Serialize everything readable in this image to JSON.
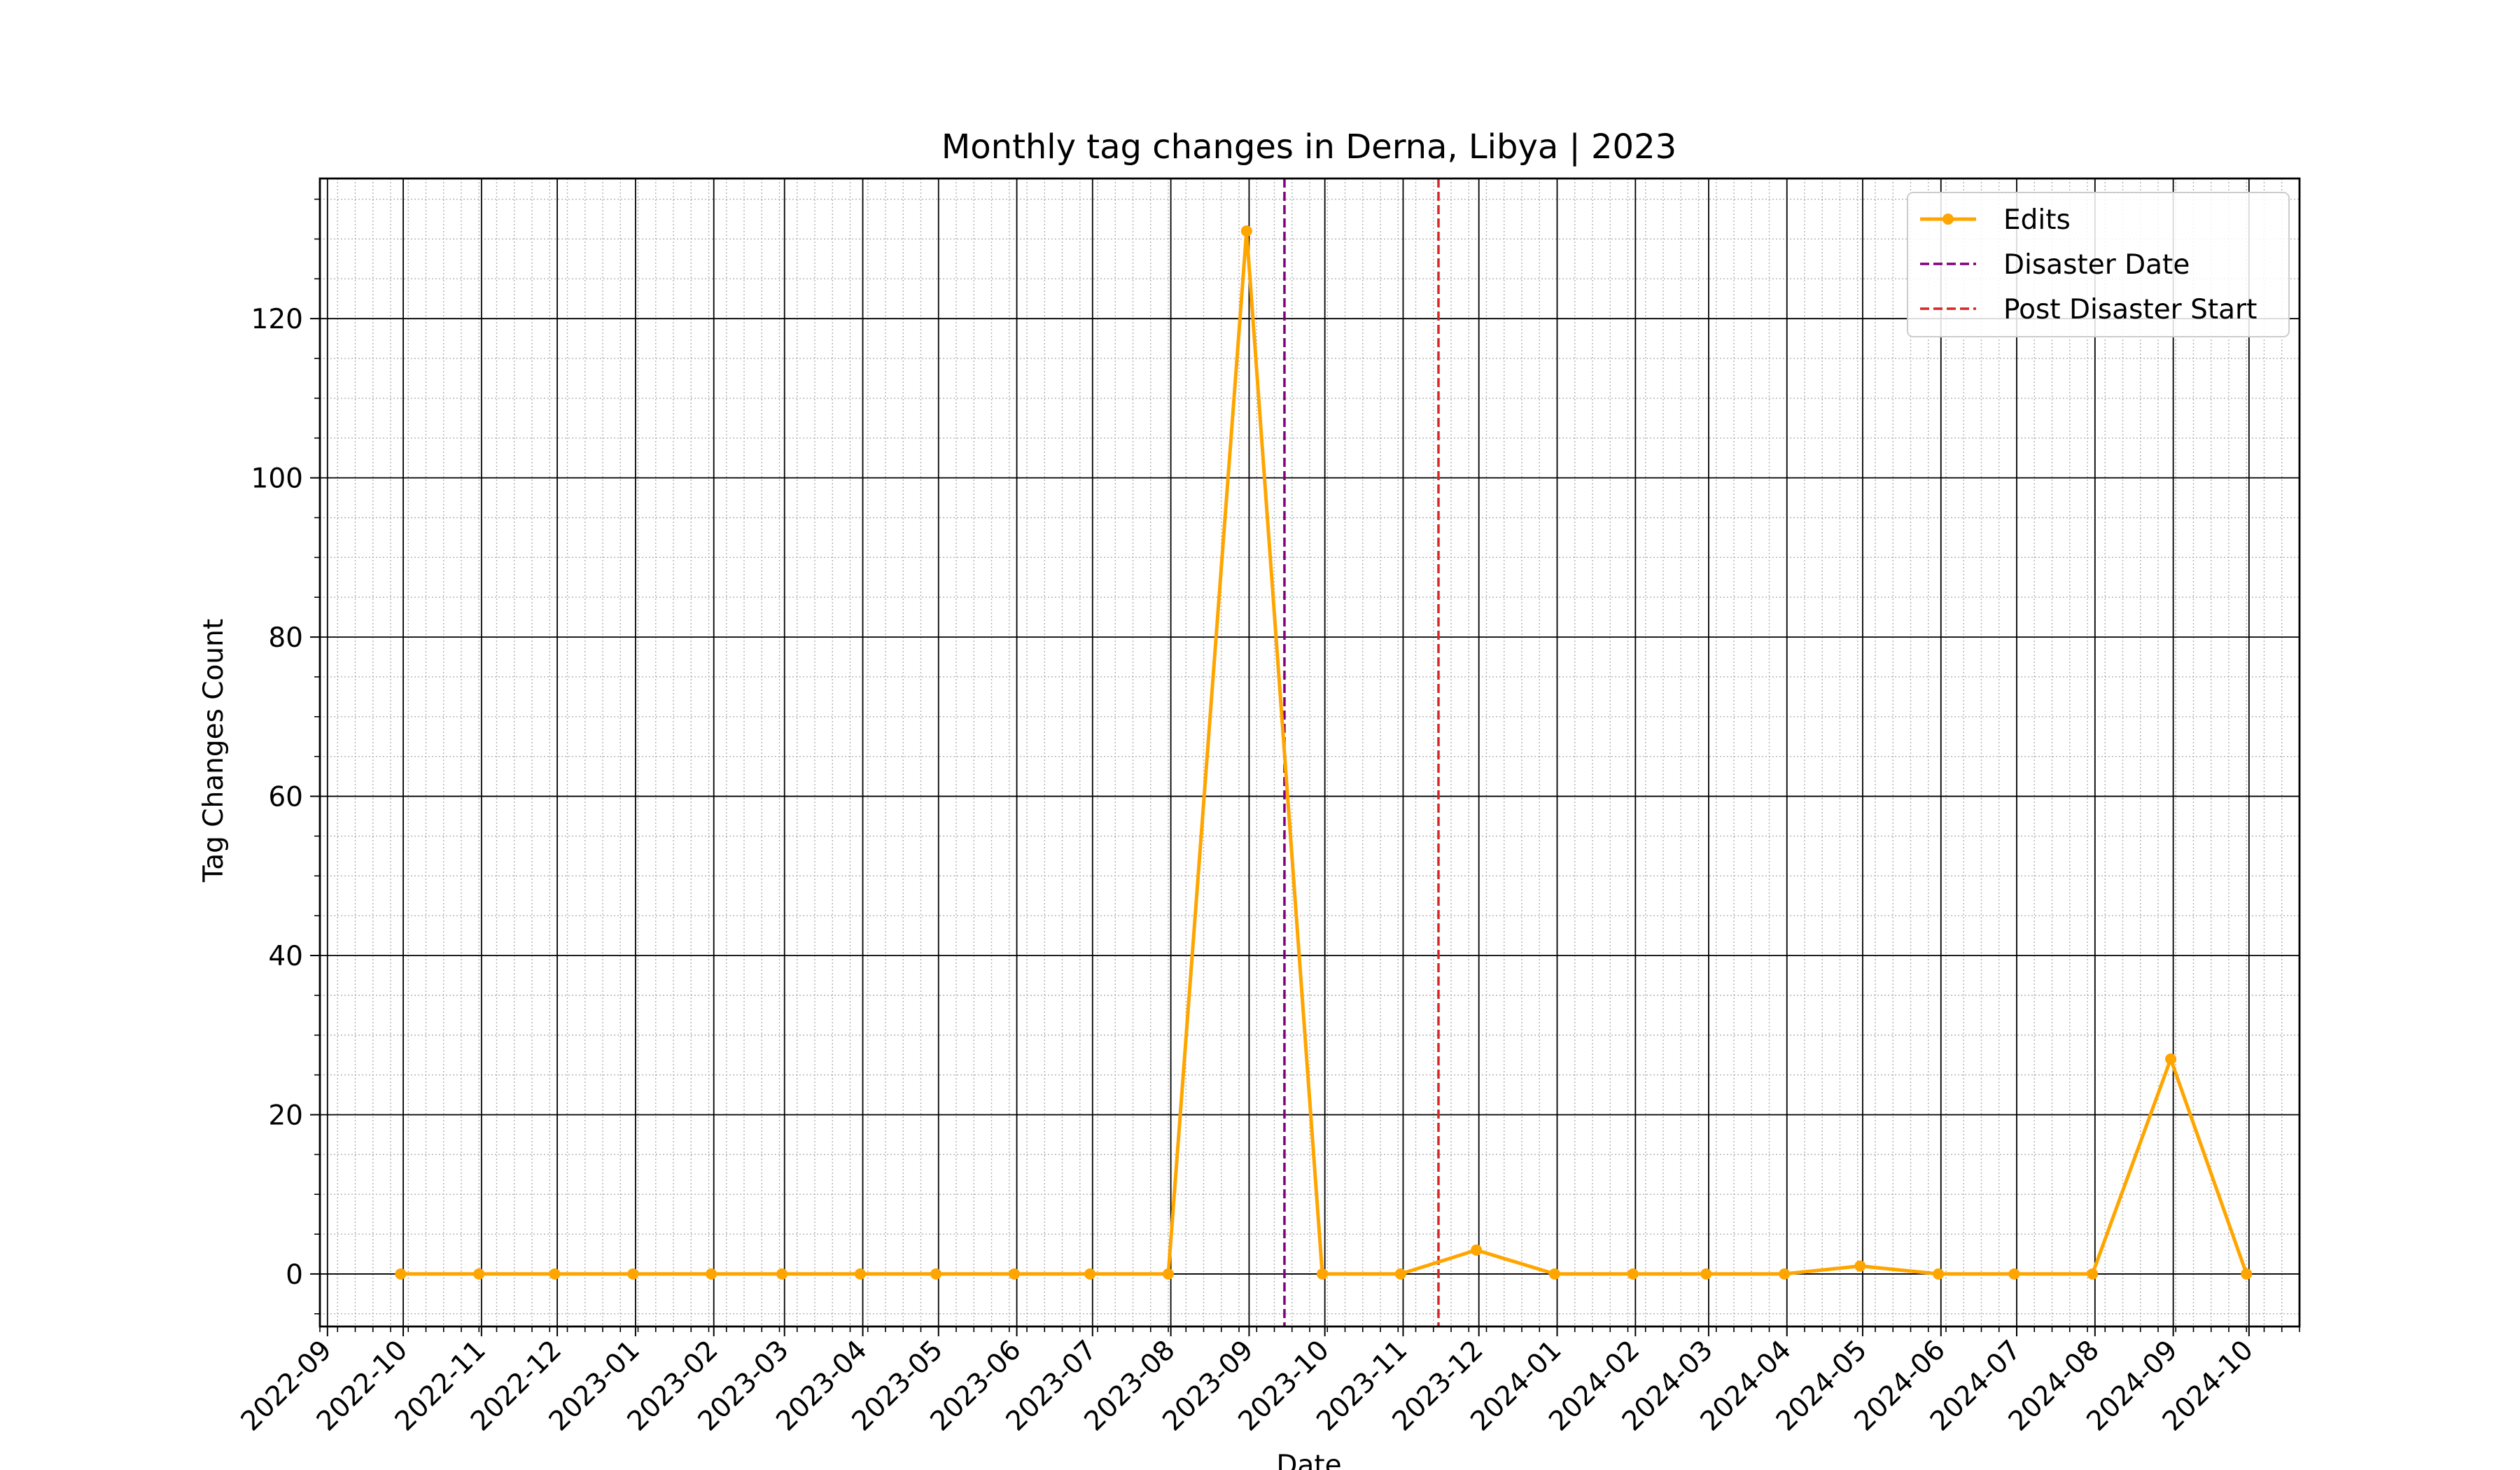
{
  "chart_data": {
    "type": "line",
    "title": "Monthly tag changes in Derna, Libya | 2023",
    "xlabel": "Date",
    "ylabel": "Tag Changes Count",
    "xlim": [
      "2022-08-29",
      "2024-10-21"
    ],
    "ylim": [
      -6.6,
      137.6
    ],
    "x_ticks": [
      "2022-09",
      "2022-10",
      "2022-11",
      "2022-12",
      "2023-01",
      "2023-02",
      "2023-03",
      "2023-04",
      "2023-05",
      "2023-06",
      "2023-07",
      "2023-08",
      "2023-09",
      "2023-10",
      "2023-11",
      "2023-12",
      "2024-01",
      "2024-02",
      "2024-03",
      "2024-04",
      "2024-05",
      "2024-06",
      "2024-07",
      "2024-08",
      "2024-09",
      "2024-10"
    ],
    "y_ticks": [
      0,
      20,
      40,
      60,
      80,
      100,
      120
    ],
    "grid": {
      "major": true,
      "minor": true
    },
    "legend_position": "top-right",
    "series": [
      {
        "name": "Edits",
        "color": "#FFA500",
        "marker": "circle",
        "x": [
          "2022-09-30",
          "2022-10-31",
          "2022-11-30",
          "2022-12-31",
          "2023-01-31",
          "2023-02-28",
          "2023-03-31",
          "2023-04-30",
          "2023-05-31",
          "2023-06-30",
          "2023-07-31",
          "2023-08-31",
          "2023-09-30",
          "2023-10-31",
          "2023-11-30",
          "2023-12-31",
          "2024-01-31",
          "2024-02-29",
          "2024-03-31",
          "2024-04-30",
          "2024-05-31",
          "2024-06-30",
          "2024-07-31",
          "2024-08-31",
          "2024-09-30"
        ],
        "values": [
          0,
          0,
          0,
          0,
          0,
          0,
          0,
          0,
          0,
          0,
          0,
          131,
          0,
          0,
          3,
          0,
          0,
          0,
          0,
          1,
          0,
          0,
          0,
          27,
          0
        ]
      }
    ],
    "vertical_lines": [
      {
        "name": "Disaster Date",
        "x": "2023-09-15",
        "color": "#800080",
        "style": "dashed"
      },
      {
        "name": "Post Disaster Start",
        "x": "2023-11-15",
        "color": "#D62728",
        "style": "dashed"
      }
    ]
  }
}
